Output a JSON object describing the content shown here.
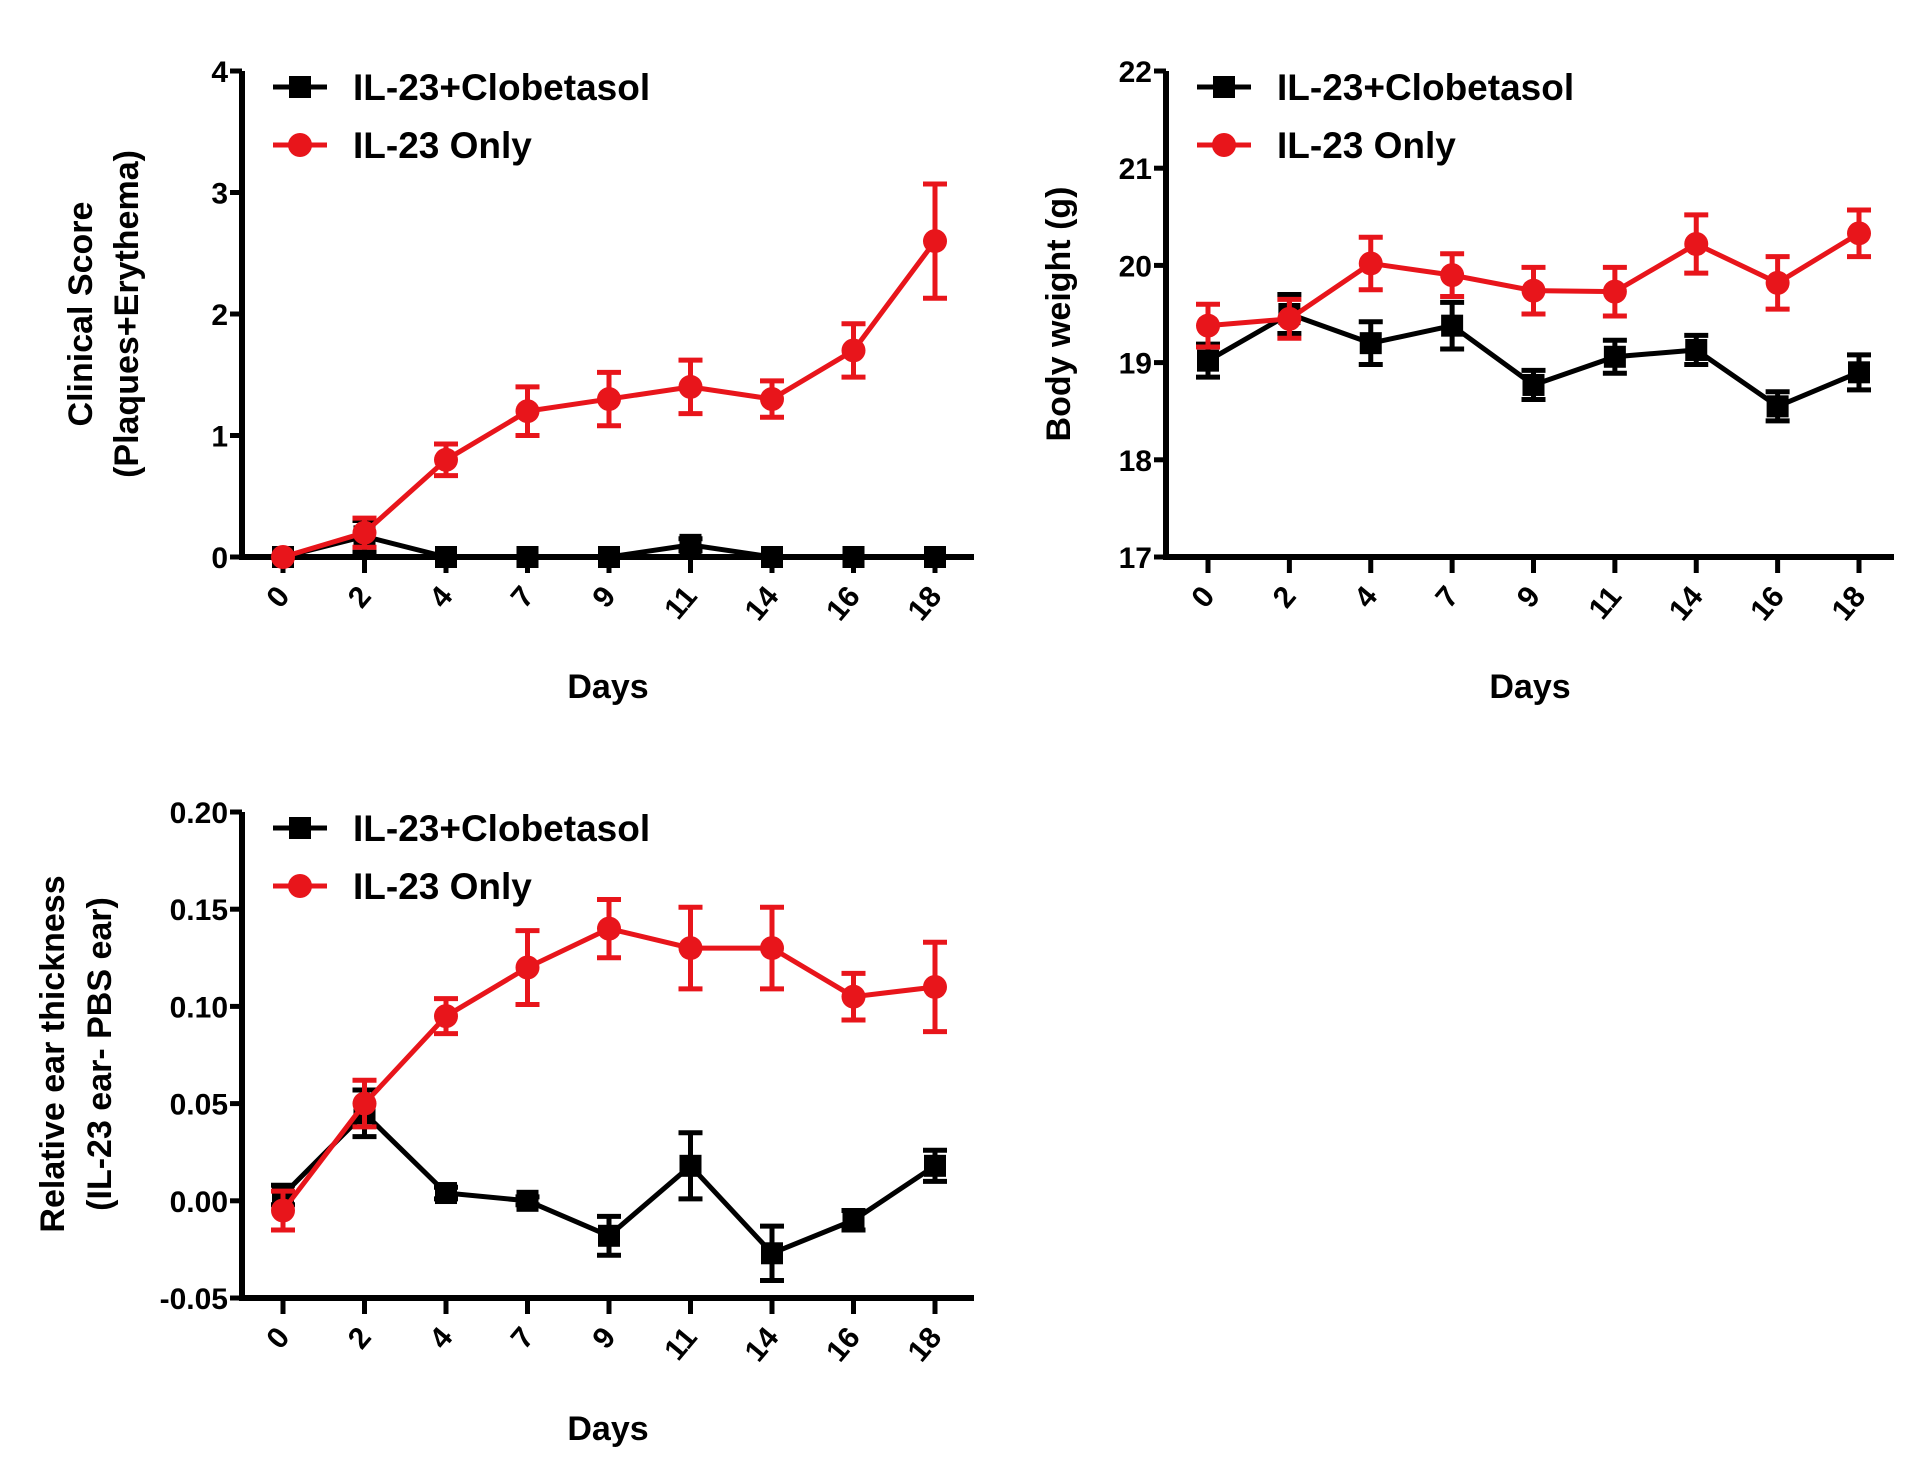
{
  "chart_data": [
    {
      "type": "line",
      "title": "",
      "xlabel": "Days",
      "ylabel": [
        "Clinical Score",
        "(Plaques+Erythema)"
      ],
      "categories": [
        "0",
        "2",
        "4",
        "7",
        "9",
        "11",
        "14",
        "16",
        "18"
      ],
      "ylim": [
        0,
        4
      ],
      "yticks": [
        "0",
        "1",
        "2",
        "3",
        "4"
      ],
      "ytick_values": [
        0,
        1,
        2,
        3,
        4
      ],
      "legend_position": "top-left",
      "series": [
        {
          "name": "IL-23+Clobetasol",
          "color": "#000000",
          "marker": "square",
          "values": [
            0,
            0.17,
            0,
            0,
            0,
            0.1,
            0,
            0,
            0
          ],
          "error": [
            0,
            0.13,
            0,
            0,
            0,
            0.05,
            0,
            0,
            0
          ]
        },
        {
          "name": "IL-23 Only",
          "color": "#e8151b",
          "marker": "circle",
          "values": [
            0,
            0.2,
            0.8,
            1.2,
            1.3,
            1.4,
            1.3,
            1.7,
            2.6
          ],
          "error": [
            0,
            0.12,
            0.13,
            0.2,
            0.22,
            0.22,
            0.15,
            0.22,
            0.47
          ]
        }
      ]
    },
    {
      "type": "line",
      "title": "",
      "xlabel": "Days",
      "ylabel": [
        "Body weight (g)"
      ],
      "categories": [
        "0",
        "2",
        "4",
        "7",
        "9",
        "11",
        "14",
        "16",
        "18"
      ],
      "ylim": [
        17,
        22
      ],
      "yticks": [
        "17",
        "18",
        "19",
        "20",
        "21",
        "22"
      ],
      "ytick_values": [
        17,
        18,
        19,
        20,
        21,
        22
      ],
      "legend_position": "top-left",
      "series": [
        {
          "name": "IL-23+Clobetasol",
          "color": "#000000",
          "marker": "square",
          "values": [
            19.02,
            19.5,
            19.2,
            19.38,
            18.77,
            19.06,
            19.13,
            18.55,
            18.9
          ],
          "error": [
            0.17,
            0.2,
            0.22,
            0.24,
            0.15,
            0.17,
            0.15,
            0.15,
            0.18
          ]
        },
        {
          "name": "IL-23 Only",
          "color": "#e8151b",
          "marker": "circle",
          "values": [
            19.38,
            19.45,
            20.02,
            19.9,
            19.74,
            19.73,
            20.22,
            19.82,
            20.33
          ],
          "error": [
            0.22,
            0.2,
            0.27,
            0.22,
            0.24,
            0.25,
            0.3,
            0.27,
            0.24
          ]
        }
      ]
    },
    {
      "type": "line",
      "title": "",
      "xlabel": "Days",
      "ylabel": [
        "Relative ear thickness",
        "(IL-23 ear- PBS ear)"
      ],
      "categories": [
        "0",
        "2",
        "4",
        "7",
        "9",
        "11",
        "14",
        "16",
        "18"
      ],
      "ylim": [
        -0.05,
        0.2
      ],
      "yticks": [
        "-0.05",
        "0.00",
        "0.05",
        "0.10",
        "0.15",
        "0.20"
      ],
      "ytick_values": [
        -0.05,
        0,
        0.05,
        0.1,
        0.15,
        0.2
      ],
      "legend_position": "top-left",
      "series": [
        {
          "name": "IL-23+Clobetasol",
          "color": "#000000",
          "marker": "square",
          "values": [
            0.003,
            0.045,
            0.004,
            0,
            -0.018,
            0.018,
            -0.027,
            -0.01,
            0.018
          ],
          "error": [
            0.005,
            0.012,
            0.003,
            0.002,
            0.01,
            0.017,
            0.014,
            0.005,
            0.008
          ]
        },
        {
          "name": "IL-23 Only",
          "color": "#e8151b",
          "marker": "circle",
          "values": [
            -0.005,
            0.05,
            0.095,
            0.12,
            0.14,
            0.13,
            0.13,
            0.105,
            0.11
          ],
          "error": [
            0.01,
            0.012,
            0.009,
            0.019,
            0.015,
            0.021,
            0.021,
            0.012,
            0.023
          ]
        }
      ]
    }
  ]
}
